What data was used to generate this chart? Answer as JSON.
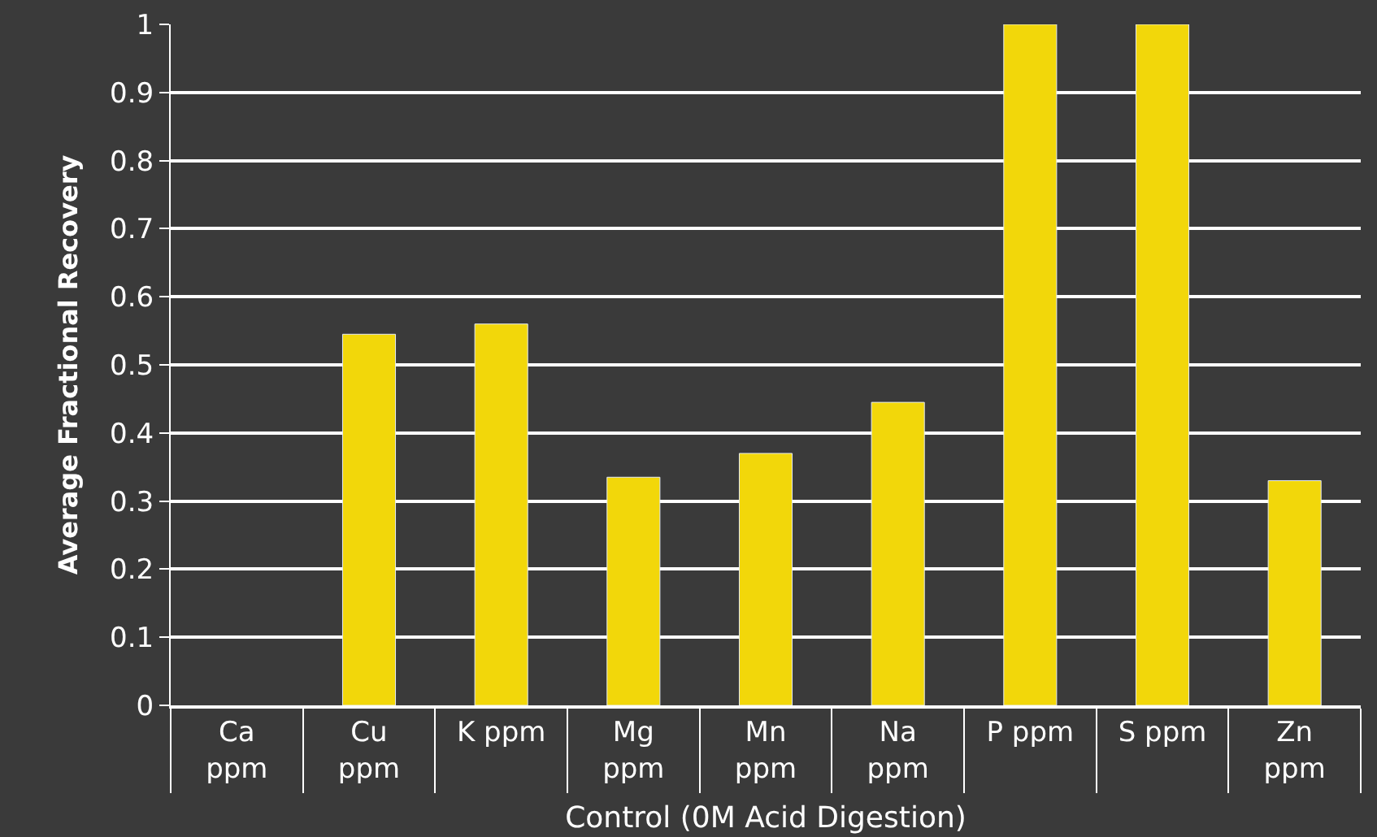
{
  "chart_data": {
    "type": "bar",
    "xlabel": "Control (0M Acid Digestion)",
    "ylabel": "Average Fractional Recovery",
    "categories": [
      "Ca ppm",
      "Cu ppm",
      "K ppm",
      "Mg ppm",
      "Mn ppm",
      "Na ppm",
      "P ppm",
      "S ppm",
      "Zn ppm"
    ],
    "values": [
      null,
      0.545,
      0.56,
      0.335,
      0.37,
      0.445,
      1,
      1,
      0.33
    ],
    "color": "#f2d70a",
    "ylim": [
      0,
      1
    ],
    "yticks": [
      {
        "value": 0,
        "label": "0"
      },
      0.1,
      0.2,
      0.3,
      0.4,
      0.5,
      0.6,
      0.7,
      0.8,
      0.9,
      1
    ],
    "grid": "y",
    "legend": false
  }
}
